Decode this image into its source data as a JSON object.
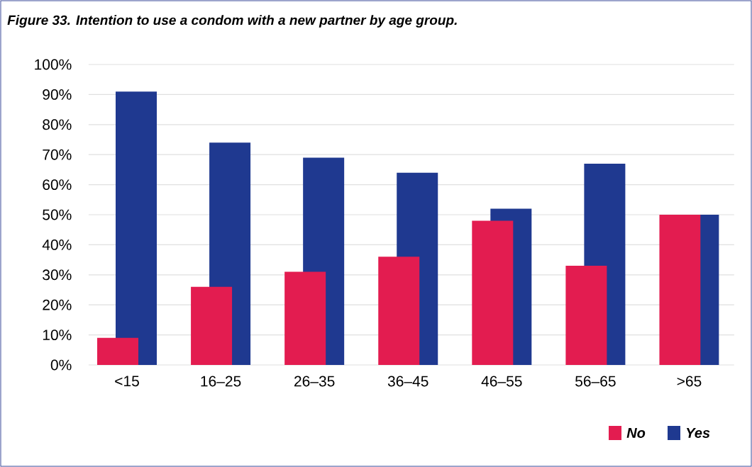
{
  "chart_data": {
    "type": "bar",
    "title": "Figure 33. Intention to use a condom with a new partner by age group.",
    "categories": [
      "<15",
      "16–25",
      "26–35",
      "36–45",
      "46–55",
      "56–65",
      ">65"
    ],
    "series": [
      {
        "name": "No",
        "color": "#e31c50",
        "values": [
          9,
          26,
          31,
          36,
          48,
          33,
          50
        ]
      },
      {
        "name": "Yes",
        "color": "#1f3990",
        "values": [
          91,
          74,
          69,
          64,
          52,
          67,
          50
        ]
      }
    ],
    "ylim": [
      0,
      100
    ],
    "yticks": [
      {
        "value": 0,
        "label": "0%"
      },
      {
        "value": 10,
        "label": "10%"
      },
      {
        "value": 20,
        "label": "20%"
      },
      {
        "value": 30,
        "label": "30%"
      },
      {
        "value": 40,
        "label": "40%"
      },
      {
        "value": 50,
        "label": "50%"
      },
      {
        "value": 60,
        "label": "60%"
      },
      {
        "value": 70,
        "label": "70%"
      },
      {
        "value": 80,
        "label": "80%"
      },
      {
        "value": 90,
        "label": "90%"
      },
      {
        "value": 100,
        "label": "100%"
      }
    ],
    "grid": "y",
    "legend": "bottom right"
  }
}
